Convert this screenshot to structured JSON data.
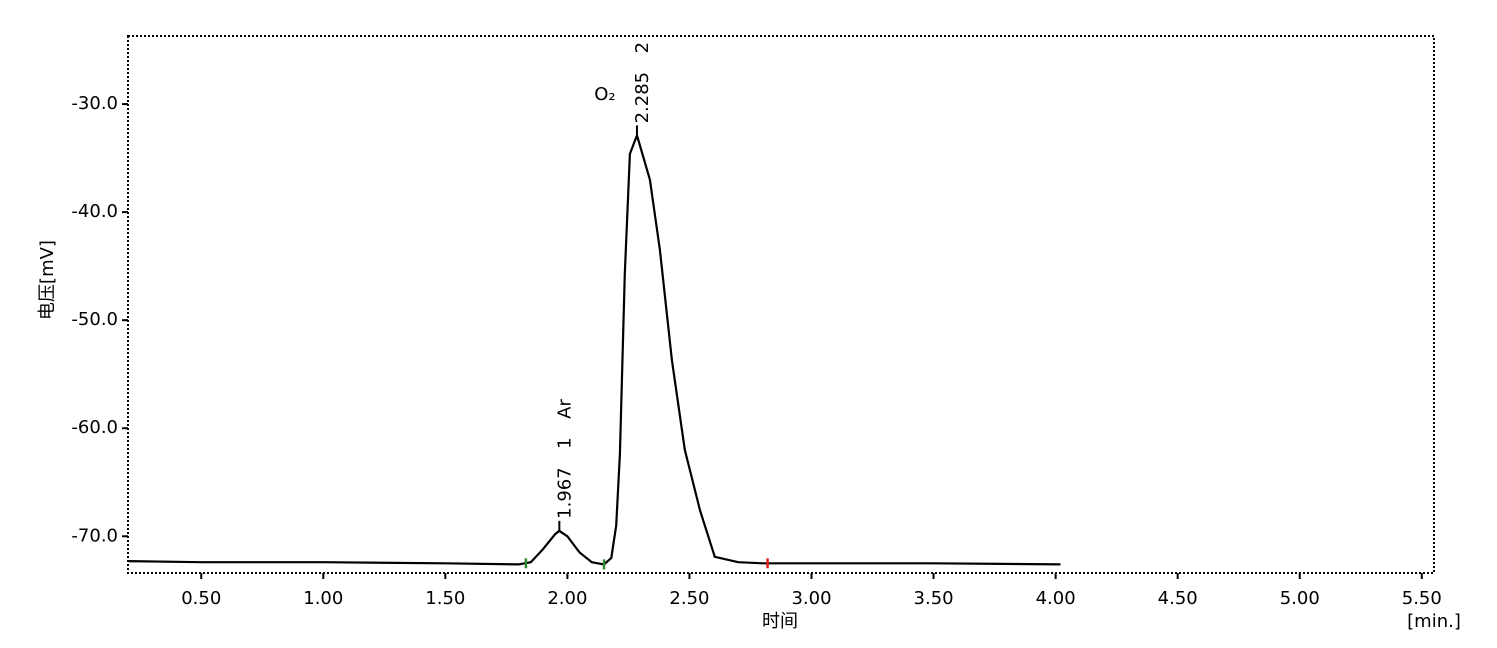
{
  "chart_data": {
    "type": "line",
    "xlabel": "时间",
    "xunit": "[min.]",
    "ylabel": "电压[mV]",
    "color": "#000000",
    "xlim": [
      0.2,
      5.55
    ],
    "ylim": [
      -73.4,
      -23.7
    ],
    "xticks": [
      {
        "value": 0.5,
        "label": "0.50"
      },
      {
        "value": 1.0,
        "label": "1.00"
      },
      {
        "value": 1.5,
        "label": "1.50"
      },
      {
        "value": 2.0,
        "label": "2.00"
      },
      {
        "value": 2.5,
        "label": "2.50"
      },
      {
        "value": 3.0,
        "label": "3.00"
      },
      {
        "value": 3.5,
        "label": "3.50"
      },
      {
        "value": 4.0,
        "label": "4.00"
      },
      {
        "value": 4.5,
        "label": "4.50"
      },
      {
        "value": 5.0,
        "label": "5.00"
      },
      {
        "value": 5.5,
        "label": "5.50"
      }
    ],
    "yticks": [
      {
        "value": -30,
        "label": "-30.0"
      },
      {
        "value": -40,
        "label": "-40.0"
      },
      {
        "value": -50,
        "label": "-50.0"
      },
      {
        "value": -60,
        "label": "-60.0"
      },
      {
        "value": -70,
        "label": "-70.0"
      }
    ],
    "x": [
      0.2,
      0.5,
      1.0,
      1.5,
      1.8,
      1.85,
      1.9,
      1.95,
      1.967,
      2.0,
      2.05,
      2.1,
      2.15,
      2.18,
      2.2,
      2.215,
      2.235,
      2.256,
      2.285,
      2.338,
      2.379,
      2.428,
      2.481,
      2.543,
      2.604,
      2.7,
      2.8,
      3.0,
      3.5,
      4.02
    ],
    "values": [
      -72.3,
      -72.4,
      -72.4,
      -72.5,
      -72.6,
      -72.4,
      -71.2,
      -69.8,
      -69.5,
      -70.0,
      -71.5,
      -72.4,
      -72.6,
      -72.0,
      -69.0,
      -62.4,
      -45.7,
      -34.6,
      -32.9,
      -37.0,
      -43.5,
      -53.7,
      -62.0,
      -67.6,
      -71.9,
      -72.4,
      -72.5,
      -72.5,
      -72.5,
      -72.6
    ],
    "peaks": [
      {
        "rt": 1.967,
        "y": -69.5,
        "id": 1,
        "name": "Ar",
        "name_orientation": "vertical"
      },
      {
        "rt": 2.285,
        "y": -32.9,
        "id": 2,
        "name": "O₂",
        "name_orientation": "horizontal"
      }
    ],
    "integration_marks": [
      {
        "x": 1.83,
        "y": -72.5,
        "color": "#2e8b2e"
      },
      {
        "x": 2.15,
        "y": -72.6,
        "color": "#2e8b2e"
      },
      {
        "x": 2.82,
        "y": -72.5,
        "color": "#e02020"
      }
    ]
  }
}
